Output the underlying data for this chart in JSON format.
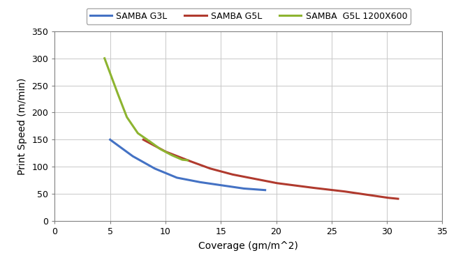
{
  "title": "",
  "xlabel": "Coverage (gm/m^2)",
  "ylabel": "Print Speed (m/min)",
  "xlim": [
    0,
    35
  ],
  "ylim": [
    0,
    350
  ],
  "xticks": [
    0,
    5,
    10,
    15,
    20,
    25,
    30,
    35
  ],
  "yticks": [
    0,
    50,
    100,
    150,
    200,
    250,
    300,
    350
  ],
  "series": [
    {
      "label": "SAMBA G3L",
      "color": "#4472C4",
      "x": [
        5,
        7,
        9,
        11,
        13,
        15,
        17,
        19
      ],
      "y": [
        150,
        120,
        97,
        80,
        72,
        66,
        60,
        57
      ]
    },
    {
      "label": "SAMBA G5L",
      "color": "#B03A2E",
      "x": [
        8,
        10,
        12,
        14,
        16,
        18,
        20,
        23,
        26,
        30,
        31
      ],
      "y": [
        150,
        128,
        112,
        97,
        86,
        78,
        70,
        62,
        55,
        43,
        41
      ]
    },
    {
      "label": "SAMBA  G5L 1200X600",
      "color": "#8DB430",
      "x": [
        4.5,
        5.5,
        6.5,
        7.5,
        8.5,
        9.5,
        10.5,
        11.5,
        12.0
      ],
      "y": [
        300,
        245,
        192,
        162,
        148,
        133,
        122,
        113,
        112
      ]
    }
  ],
  "legend_loc": "upper right",
  "grid": true,
  "background_color": "#ffffff",
  "line_width": 2.2
}
